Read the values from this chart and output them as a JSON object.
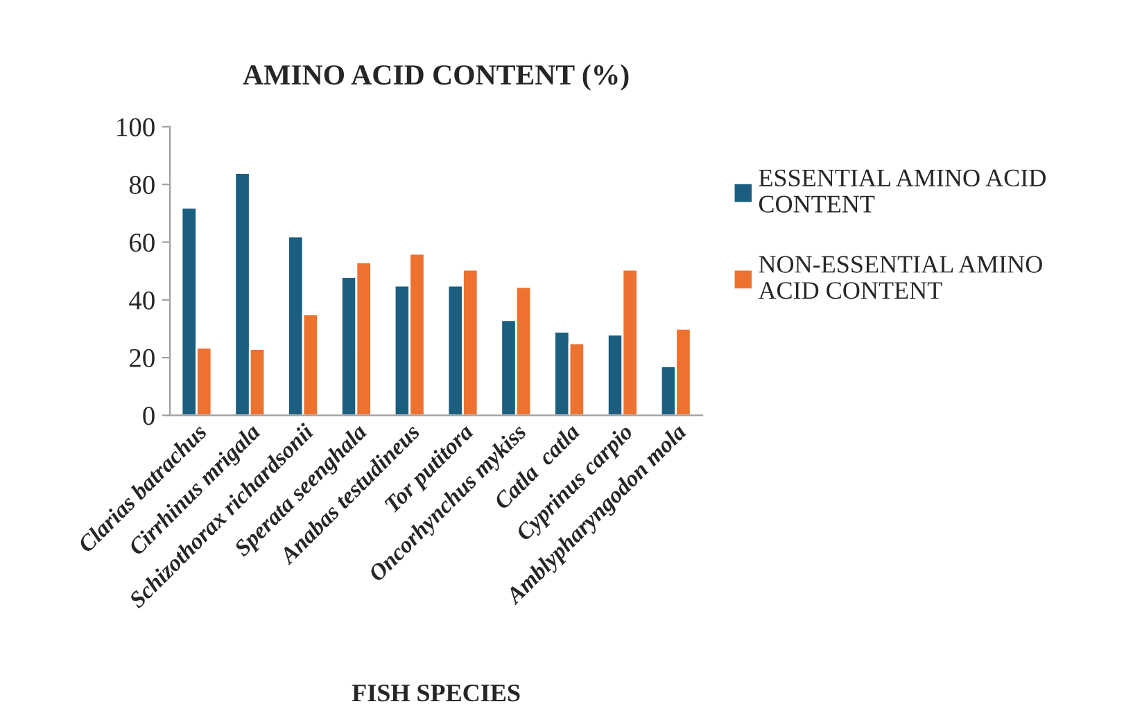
{
  "chart_data": {
    "type": "bar",
    "title": "AMINO ACID CONTENT (%)",
    "xlabel": "FISH SPECIES",
    "categories": [
      "Clarias batrachus",
      "Cirrhinus mrigala",
      "Schizothorax richardsonii",
      "Sperata seenghala",
      "Anabas testudineus",
      "Tor putitora",
      "Oncorhynchus mykiss",
      "Catla  catla",
      "Cyprinus carpio",
      "Amblypharyngodon mola"
    ],
    "series": [
      {
        "name": "ESSENTIAL AMINO ACID CONTENT",
        "color": "#1b5e80",
        "values": [
          72,
          84,
          62,
          48,
          45,
          45,
          33,
          29,
          28,
          17
        ]
      },
      {
        "name": "NON-ESSENTIAL AMINO ACID CONTENT",
        "color": "#ed7230",
        "values": [
          23.5,
          23,
          35,
          53,
          56,
          50.5,
          44.5,
          25,
          50.5,
          30
        ]
      }
    ],
    "ylim": [
      0,
      100
    ],
    "yticks": [
      0,
      20,
      40,
      60,
      80,
      100
    ],
    "grid": false,
    "legend": "right"
  }
}
